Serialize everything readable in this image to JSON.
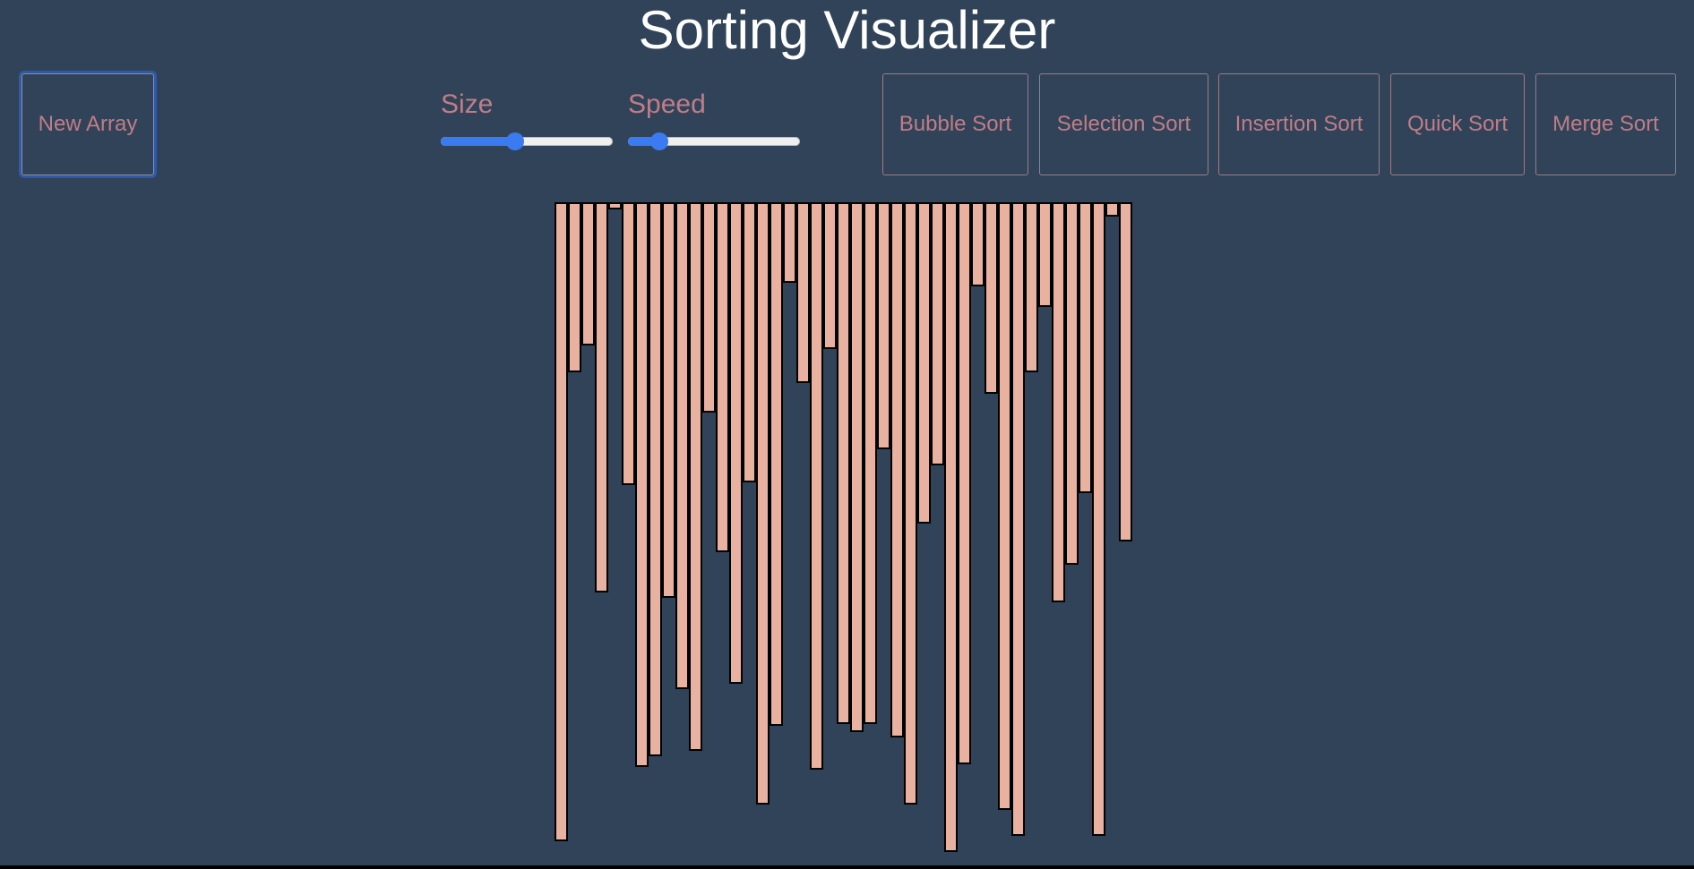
{
  "header": {
    "title": "Sorting Visualizer"
  },
  "toolbar": {
    "new_array_label": "New Array",
    "size_label": "Size",
    "speed_label": "Speed",
    "size_value": 0.43,
    "speed_value": 0.18,
    "algorithms": [
      {
        "id": "bubble",
        "label": "Bubble Sort"
      },
      {
        "id": "selection",
        "label": "Selection Sort"
      },
      {
        "id": "insertion",
        "label": "Insertion Sort"
      },
      {
        "id": "quick",
        "label": "Quick Sort"
      },
      {
        "id": "merge",
        "label": "Merge Sort"
      }
    ]
  },
  "array": {
    "values": [
      710,
      186,
      156,
      432,
      4,
      312,
      627,
      615,
      438,
      540,
      609,
      231,
      387,
      534,
      309,
      669,
      581,
      86,
      198,
      630,
      160,
      579,
      588,
      579,
      272,
      594,
      669,
      355,
      290,
      722,
      624,
      90,
      210,
      675,
      704,
      186,
      113,
      443,
      401,
      321,
      704,
      12,
      375
    ],
    "bar_color": "#e8b1a0",
    "border_color": "#000000"
  },
  "theme": {
    "background": "#314358",
    "accent": "#3a7bf2",
    "button_text": "#c07d87"
  }
}
